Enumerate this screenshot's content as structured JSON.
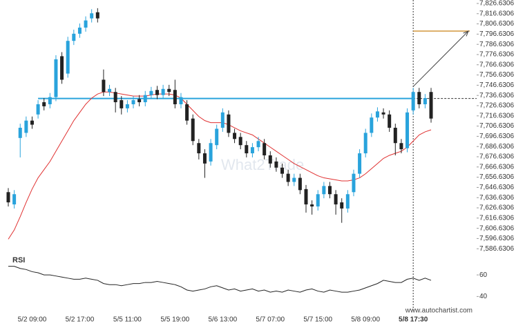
{
  "chart_data": {
    "type": "candlestick",
    "categories": [
      null,
      null,
      null,
      null,
      "5/2 09:00",
      null,
      null,
      null,
      null,
      null,
      null,
      null,
      "5/2 17:00",
      null,
      null,
      null,
      null,
      null,
      null,
      null,
      "5/5 11:00",
      null,
      null,
      null,
      null,
      null,
      null,
      null,
      "5/5 19:00",
      null,
      null,
      null,
      null,
      null,
      null,
      null,
      "5/6 13:00",
      null,
      null,
      null,
      null,
      null,
      null,
      null,
      "5/7 07:00",
      null,
      null,
      null,
      null,
      null,
      null,
      null,
      "5/7 15:00",
      null,
      null,
      null,
      null,
      null,
      null,
      null,
      "5/8 09:00",
      null,
      null,
      null,
      null,
      null,
      null,
      null,
      "5/8 17:30",
      null,
      null,
      null
    ],
    "open": [
      7642,
      7630,
      7695,
      7700,
      7712,
      7718,
      7730,
      7728,
      7735,
      7775,
      7758,
      7790,
      7797,
      7803,
      7812,
      7818,
      7752,
      7740,
      7740,
      7732,
      7724,
      7728,
      7733,
      7730,
      7737,
      7742,
      7737,
      7743,
      7742,
      7728,
      7728,
      7714,
      7690,
      7680,
      7672,
      7688,
      7705,
      7718,
      7700,
      7696,
      7688,
      7680,
      7686,
      7690,
      7678,
      7672,
      7666,
      7660,
      7652,
      7656,
      7645,
      7630,
      7628,
      7640,
      7648,
      7640,
      7632,
      7626,
      7642,
      7660,
      7680,
      7700,
      7715,
      7720,
      7718,
      7705,
      7690,
      7685,
      7722,
      7740,
      7728,
      7740
    ],
    "high": [
      7646,
      7644,
      7709,
      7716,
      7716,
      7732,
      7734,
      7739,
      7776,
      7779,
      7794,
      7801,
      7807,
      7814,
      7821,
      7822,
      7762,
      7747,
      7744,
      7736,
      7732,
      7736,
      7737,
      7741,
      7745,
      7746,
      7747,
      7747,
      7752,
      7739,
      7732,
      7718,
      7694,
      7684,
      7694,
      7708,
      7724,
      7722,
      7704,
      7700,
      7692,
      7690,
      7696,
      7694,
      7682,
      7676,
      7670,
      7664,
      7660,
      7660,
      7649,
      7634,
      7644,
      7652,
      7652,
      7644,
      7636,
      7644,
      7664,
      7684,
      7704,
      7719,
      7725,
      7724,
      7722,
      7709,
      7694,
      7724,
      7744,
      7744,
      7738,
      7744
    ],
    "low": [
      7628,
      7626,
      7676,
      7696,
      7704,
      7714,
      7722,
      7724,
      7731,
      7748,
      7754,
      7786,
      7793,
      7799,
      7808,
      7808,
      7736,
      7736,
      7720,
      7718,
      7720,
      7724,
      7726,
      7726,
      7733,
      7733,
      7733,
      7736,
      7724,
      7724,
      7708,
      7688,
      7674,
      7656,
      7668,
      7684,
      7701,
      7696,
      7690,
      7684,
      7676,
      7676,
      7682,
      7674,
      7666,
      7662,
      7656,
      7648,
      7648,
      7640,
      7622,
      7620,
      7624,
      7636,
      7636,
      7620,
      7612,
      7622,
      7638,
      7656,
      7676,
      7696,
      7711,
      7714,
      7701,
      7678,
      7680,
      7681,
      7718,
      7724,
      7724,
      7710
    ],
    "close": [
      7632,
      7640,
      7705,
      7712,
      7708,
      7728,
      7726,
      7735,
      7772,
      7752,
      7790,
      7797,
      7803,
      7810,
      7817,
      7812,
      7740,
      7743,
      7730,
      7724,
      7728,
      7732,
      7730,
      7737,
      7741,
      7737,
      7743,
      7740,
      7728,
      7735,
      7712,
      7692,
      7680,
      7670,
      7690,
      7704,
      7720,
      7700,
      7694,
      7688,
      7680,
      7686,
      7692,
      7678,
      7670,
      7666,
      7660,
      7652,
      7656,
      7644,
      7630,
      7628,
      7640,
      7648,
      7640,
      7630,
      7626,
      7640,
      7660,
      7680,
      7700,
      7715,
      7721,
      7718,
      7705,
      7690,
      7684,
      7720,
      7740,
      7728,
      7734,
      7714
    ],
    "up_color": "#29a3dc",
    "down_color": "#222222",
    "ma": [
      7596,
      7605,
      7618,
      7632,
      7645,
      7656,
      7664,
      7672,
      7682,
      7692,
      7702,
      7712,
      7720,
      7728,
      7734,
      7738,
      7740,
      7740,
      7739,
      7738,
      7737,
      7736,
      7736,
      7736,
      7737,
      7738,
      7738,
      7738,
      7737,
      7734,
      7728,
      7722,
      7716,
      7712,
      7710,
      7710,
      7710,
      7708,
      7705,
      7702,
      7700,
      7698,
      7694,
      7690,
      7686,
      7682,
      7678,
      7674,
      7670,
      7667,
      7664,
      7661,
      7658,
      7656,
      7655,
      7654,
      7653,
      7653,
      7654,
      7656,
      7660,
      7665,
      7670,
      7675,
      7678,
      7680,
      7682,
      7686,
      7692,
      7698,
      7701,
      7703
    ],
    "ma_color": "#e03030",
    "ylim": [
      7583.4,
      7830
    ],
    "yticks": [
      {
        "value": 7586.6306,
        "label": "7,586.6306"
      },
      {
        "value": 7596.6306,
        "label": "7,596.6306"
      },
      {
        "value": 7606.6306,
        "label": "7,606.6306"
      },
      {
        "value": 7616.6306,
        "label": "7,616.6306"
      },
      {
        "value": 7626.6306,
        "label": "7,626.6306"
      },
      {
        "value": 7636.6306,
        "label": "7,636.6306"
      },
      {
        "value": 7646.6306,
        "label": "7,646.6306"
      },
      {
        "value": 7656.6306,
        "label": "7,656.6306"
      },
      {
        "value": 7666.6306,
        "label": "7,666.6306"
      },
      {
        "value": 7676.6306,
        "label": "7,676.6306"
      },
      {
        "value": 7686.6306,
        "label": "7,686.6306"
      },
      {
        "value": 7696.6306,
        "label": "7,696.6306"
      },
      {
        "value": 7706.6306,
        "label": "7,706.6306"
      },
      {
        "value": 7716.6306,
        "label": "7,716.6306"
      },
      {
        "value": 7726.6306,
        "label": "7,726.6306"
      },
      {
        "value": 7736.6306,
        "label": "7,736.6306"
      },
      {
        "value": 7746.6306,
        "label": "7,746.6306"
      },
      {
        "value": 7756.6306,
        "label": "7,756.6306"
      },
      {
        "value": 7766.6306,
        "label": "7,766.6306"
      },
      {
        "value": 7776.6306,
        "label": "7,776.6306"
      },
      {
        "value": 7786.6306,
        "label": "7,786.6306"
      },
      {
        "value": 7796.6306,
        "label": "7,796.6306"
      },
      {
        "value": 7806.6306,
        "label": "7,806.6306"
      },
      {
        "value": 7816.6306,
        "label": "7,816.6306"
      },
      {
        "value": 7826.6306,
        "label": "7,826.6306"
      }
    ],
    "level": 7733.6,
    "level_color": "#29a3dc",
    "target": 7799.6,
    "target_color": "#d4953a",
    "rsi_label": "RSI",
    "rsi": [
      68,
      68,
      66,
      65,
      63,
      62,
      60,
      60,
      59,
      58,
      57,
      56,
      56,
      57,
      56,
      55,
      52,
      51,
      51,
      50,
      51,
      52,
      52,
      53,
      53,
      54,
      53,
      52,
      51,
      49,
      46,
      45,
      46,
      47,
      49,
      50,
      48,
      46,
      47,
      45,
      46,
      47,
      45,
      46,
      44,
      45,
      44,
      46,
      45,
      44,
      46,
      47,
      45,
      44,
      46,
      45,
      44,
      44,
      45,
      46,
      48,
      50,
      52,
      55,
      54,
      53,
      53,
      56,
      57,
      55,
      57,
      55
    ],
    "rsi_ylim": [
      30,
      78
    ],
    "rsi_yticks": [
      60,
      40
    ],
    "watermark": "What2Trade",
    "source": "www.autochartist.com"
  }
}
